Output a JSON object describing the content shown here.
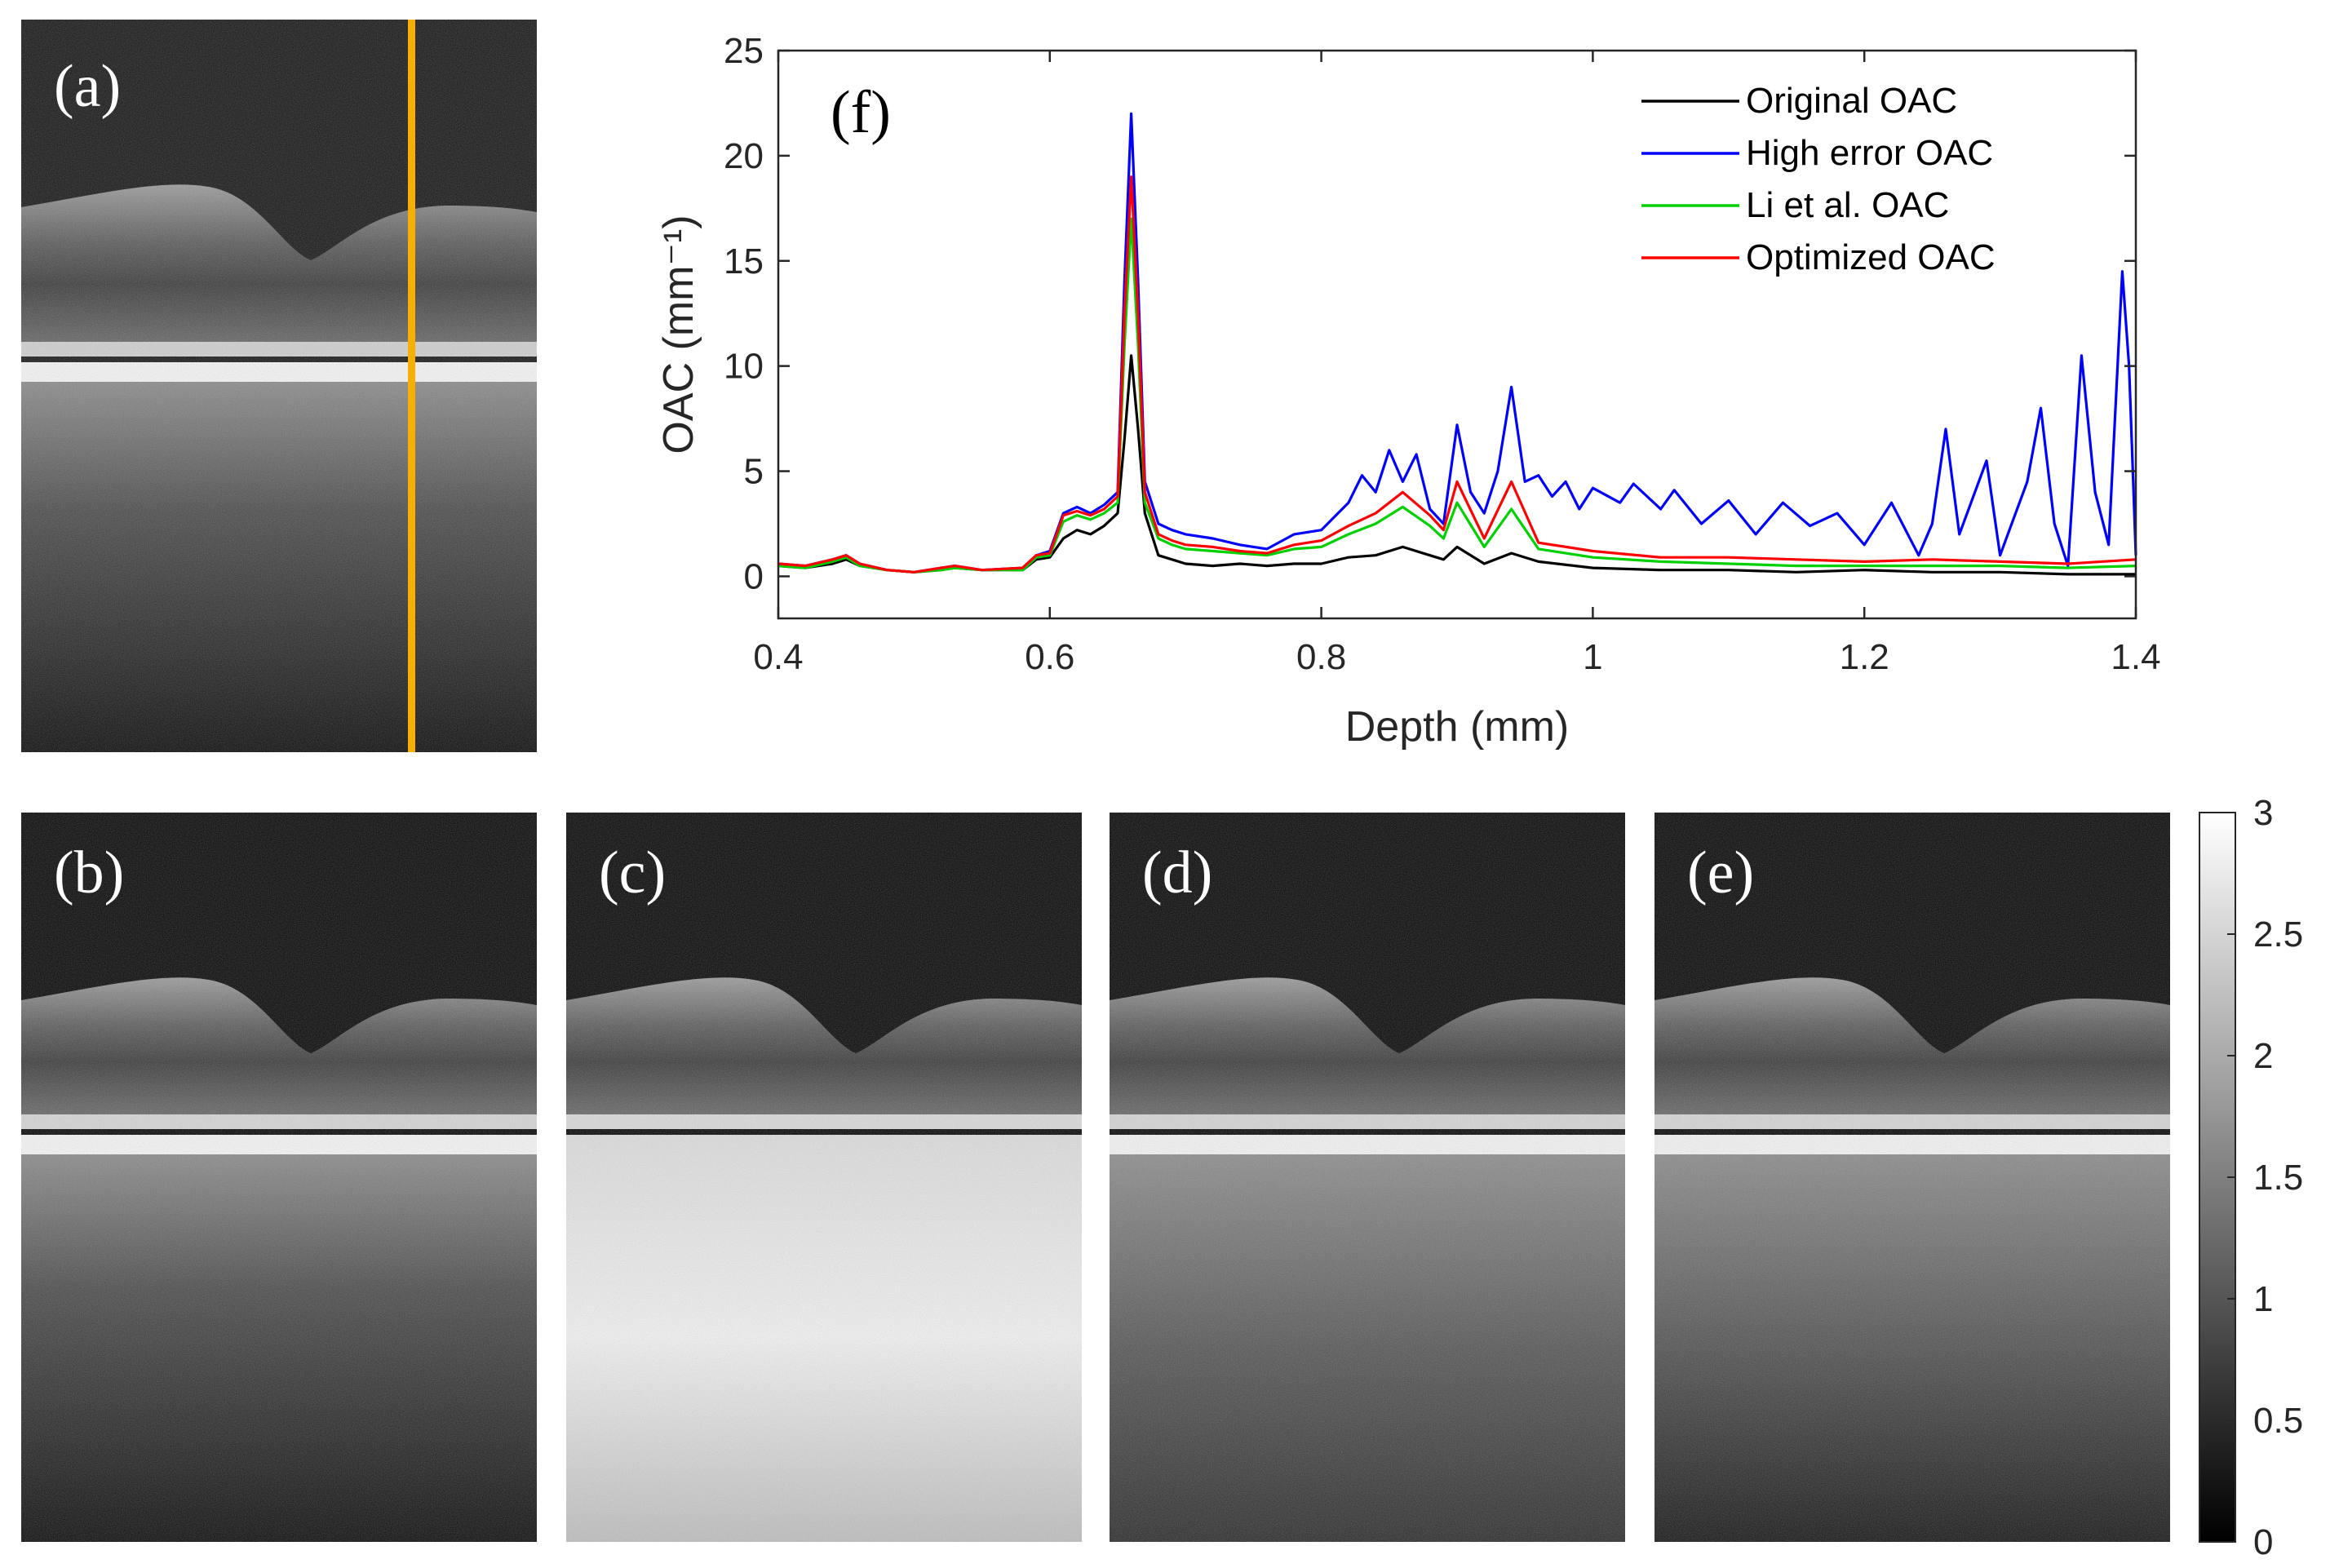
{
  "panels": {
    "a": "(a)",
    "b": "(b)",
    "c": "(c)",
    "d": "(d)",
    "e": "(e)"
  },
  "colorbar": {
    "ticks": [
      "3",
      "2.5",
      "2",
      "1.5",
      "1",
      "0.5",
      "0"
    ],
    "range": [
      0,
      3
    ]
  },
  "chart_data": {
    "type": "line",
    "panel_label": "(f)",
    "title": "",
    "xlabel": "Depth (mm)",
    "ylabel": "OAC (mm⁻¹)",
    "xlim": [
      0.4,
      1.4
    ],
    "ylim": [
      -2,
      25
    ],
    "xticks": [
      "0.4",
      "0.6",
      "0.8",
      "1",
      "1.2",
      "1.4"
    ],
    "yticks": [
      "0",
      "5",
      "10",
      "15",
      "20",
      "25"
    ],
    "legend_position": "top-right",
    "series": [
      {
        "name": "Original OAC",
        "color": "#000000",
        "x": [
          0.4,
          0.42,
          0.44,
          0.45,
          0.46,
          0.48,
          0.5,
          0.52,
          0.53,
          0.55,
          0.58,
          0.59,
          0.6,
          0.61,
          0.62,
          0.63,
          0.64,
          0.65,
          0.655,
          0.66,
          0.665,
          0.67,
          0.68,
          0.69,
          0.7,
          0.72,
          0.74,
          0.76,
          0.78,
          0.8,
          0.82,
          0.84,
          0.86,
          0.88,
          0.89,
          0.9,
          0.92,
          0.94,
          0.96,
          1.0,
          1.05,
          1.1,
          1.15,
          1.2,
          1.25,
          1.3,
          1.35,
          1.4
        ],
        "values": [
          0.5,
          0.4,
          0.6,
          0.8,
          0.5,
          0.3,
          0.2,
          0.3,
          0.4,
          0.3,
          0.3,
          0.8,
          0.9,
          1.8,
          2.2,
          2.0,
          2.4,
          3.0,
          6.5,
          10.5,
          7.0,
          3.0,
          1.0,
          0.8,
          0.6,
          0.5,
          0.6,
          0.5,
          0.6,
          0.6,
          0.9,
          1.0,
          1.4,
          1.0,
          0.8,
          1.4,
          0.6,
          1.1,
          0.7,
          0.4,
          0.3,
          0.3,
          0.2,
          0.3,
          0.2,
          0.2,
          0.1,
          0.1
        ]
      },
      {
        "name": "High error OAC",
        "color": "#0000ff",
        "x": [
          0.4,
          0.42,
          0.44,
          0.45,
          0.46,
          0.48,
          0.5,
          0.52,
          0.53,
          0.55,
          0.58,
          0.59,
          0.6,
          0.61,
          0.62,
          0.63,
          0.64,
          0.65,
          0.655,
          0.66,
          0.665,
          0.67,
          0.68,
          0.69,
          0.7,
          0.72,
          0.74,
          0.76,
          0.78,
          0.8,
          0.82,
          0.83,
          0.84,
          0.85,
          0.86,
          0.87,
          0.88,
          0.89,
          0.9,
          0.91,
          0.92,
          0.93,
          0.94,
          0.95,
          0.96,
          0.97,
          0.98,
          0.99,
          1.0,
          1.02,
          1.03,
          1.05,
          1.06,
          1.08,
          1.1,
          1.12,
          1.14,
          1.16,
          1.18,
          1.2,
          1.22,
          1.24,
          1.25,
          1.26,
          1.27,
          1.29,
          1.3,
          1.32,
          1.33,
          1.34,
          1.35,
          1.36,
          1.37,
          1.38,
          1.39,
          1.395,
          1.4
        ],
        "values": [
          0.6,
          0.5,
          0.8,
          1.0,
          0.6,
          0.3,
          0.2,
          0.4,
          0.5,
          0.3,
          0.4,
          1.0,
          1.2,
          3.0,
          3.3,
          3.0,
          3.4,
          4.0,
          14.0,
          22.0,
          14.0,
          4.5,
          2.5,
          2.2,
          2.0,
          1.8,
          1.5,
          1.3,
          2.0,
          2.2,
          3.5,
          4.8,
          4.0,
          6.0,
          4.5,
          5.8,
          3.2,
          2.5,
          7.2,
          4.0,
          3.0,
          5.0,
          9.0,
          4.5,
          4.8,
          3.8,
          4.5,
          3.2,
          4.2,
          3.5,
          4.4,
          3.2,
          4.1,
          2.5,
          3.6,
          2.0,
          3.5,
          2.4,
          3.0,
          1.5,
          3.5,
          1.0,
          2.5,
          7.0,
          2.0,
          5.5,
          1.0,
          4.5,
          8.0,
          2.5,
          0.5,
          10.5,
          4.0,
          1.5,
          14.5,
          10.0,
          1.0
        ]
      },
      {
        "name": "Li et al. OAC",
        "color": "#00d000",
        "x": [
          0.4,
          0.42,
          0.44,
          0.45,
          0.46,
          0.48,
          0.5,
          0.52,
          0.53,
          0.55,
          0.58,
          0.59,
          0.6,
          0.61,
          0.62,
          0.63,
          0.64,
          0.65,
          0.655,
          0.66,
          0.665,
          0.67,
          0.68,
          0.69,
          0.7,
          0.72,
          0.74,
          0.76,
          0.78,
          0.8,
          0.82,
          0.84,
          0.86,
          0.88,
          0.89,
          0.9,
          0.92,
          0.94,
          0.96,
          1.0,
          1.05,
          1.1,
          1.15,
          1.2,
          1.25,
          1.3,
          1.35,
          1.4
        ],
        "values": [
          0.5,
          0.4,
          0.7,
          0.9,
          0.5,
          0.3,
          0.2,
          0.3,
          0.4,
          0.3,
          0.3,
          0.9,
          1.0,
          2.6,
          2.9,
          2.7,
          3.0,
          3.5,
          11.0,
          17.0,
          11.0,
          3.5,
          1.8,
          1.5,
          1.3,
          1.2,
          1.1,
          1.0,
          1.3,
          1.4,
          2.0,
          2.5,
          3.3,
          2.4,
          1.8,
          3.5,
          1.4,
          3.2,
          1.3,
          0.9,
          0.7,
          0.6,
          0.5,
          0.5,
          0.5,
          0.5,
          0.4,
          0.5
        ]
      },
      {
        "name": "Optimized OAC",
        "color": "#ff0000",
        "x": [
          0.4,
          0.42,
          0.44,
          0.45,
          0.46,
          0.48,
          0.5,
          0.52,
          0.53,
          0.55,
          0.58,
          0.59,
          0.6,
          0.61,
          0.62,
          0.63,
          0.64,
          0.65,
          0.655,
          0.66,
          0.665,
          0.67,
          0.68,
          0.69,
          0.7,
          0.72,
          0.74,
          0.76,
          0.78,
          0.8,
          0.82,
          0.84,
          0.86,
          0.88,
          0.89,
          0.9,
          0.92,
          0.94,
          0.96,
          1.0,
          1.05,
          1.1,
          1.15,
          1.2,
          1.25,
          1.3,
          1.35,
          1.4
        ],
        "values": [
          0.6,
          0.5,
          0.8,
          1.0,
          0.6,
          0.3,
          0.2,
          0.4,
          0.5,
          0.3,
          0.4,
          1.0,
          1.1,
          2.9,
          3.1,
          2.9,
          3.2,
          3.8,
          12.5,
          19.0,
          12.5,
          4.0,
          2.0,
          1.7,
          1.5,
          1.4,
          1.2,
          1.1,
          1.5,
          1.7,
          2.4,
          3.0,
          4.0,
          2.9,
          2.2,
          4.5,
          1.8,
          4.5,
          1.6,
          1.2,
          0.9,
          0.9,
          0.8,
          0.7,
          0.8,
          0.7,
          0.6,
          0.8
        ]
      }
    ]
  }
}
